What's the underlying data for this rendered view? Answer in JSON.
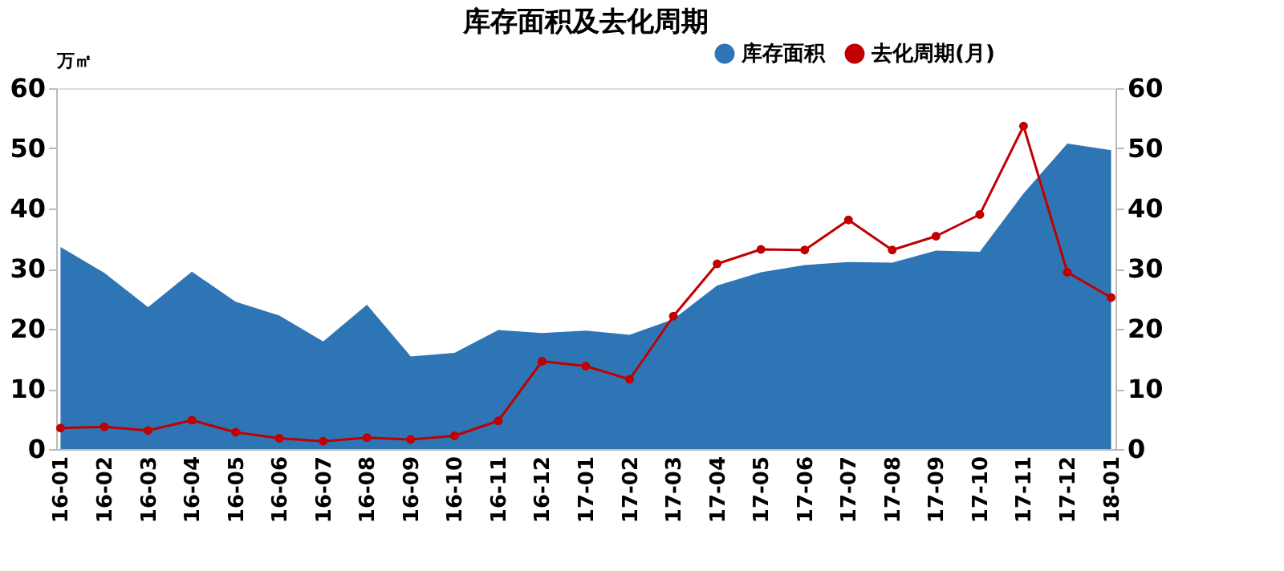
{
  "chart_data": {
    "type": "area",
    "title": "库存面积及去化周期",
    "ylabel": "万㎡",
    "categories": [
      "16-01",
      "16-02",
      "16-03",
      "16-04",
      "16-05",
      "16-06",
      "16-07",
      "16-08",
      "16-09",
      "16-10",
      "16-11",
      "16-12",
      "17-01",
      "17-02",
      "17-03",
      "17-04",
      "17-05",
      "17-06",
      "17-07",
      "17-08",
      "17-09",
      "17-10",
      "17-11",
      "17-12",
      "18-01"
    ],
    "series": [
      {
        "name": "库存面积",
        "color": "#2e75b6",
        "values": [
          33.6,
          29.3,
          23.6,
          29.5,
          24.5,
          22.2,
          17.9,
          24.0,
          15.4,
          16.0,
          19.8,
          19.3,
          19.7,
          19.0,
          21.6,
          27.2,
          29.4,
          30.6,
          31.1,
          31.0,
          33.0,
          32.8,
          42.5,
          50.8,
          49.7
        ]
      },
      {
        "name": "去化周期(月)",
        "type": "line",
        "axis": "y2",
        "color": "#c00000",
        "marker": "circle",
        "values": [
          3.5,
          3.7,
          3.1,
          4.8,
          2.8,
          1.8,
          1.3,
          1.9,
          1.6,
          2.2,
          4.7,
          14.6,
          13.8,
          11.6,
          22.1,
          30.8,
          33.2,
          33.1,
          38.1,
          33.1,
          35.4,
          39.0,
          53.7,
          29.4,
          25.2
        ]
      }
    ],
    "ylim": [
      0,
      60
    ],
    "yticks": [
      0,
      10,
      20,
      30,
      40,
      50,
      60
    ],
    "y2lim": [
      0,
      60
    ],
    "y2ticks": [
      0,
      10,
      20,
      30,
      40,
      50,
      60
    ],
    "grid": false,
    "legend": "top right"
  }
}
